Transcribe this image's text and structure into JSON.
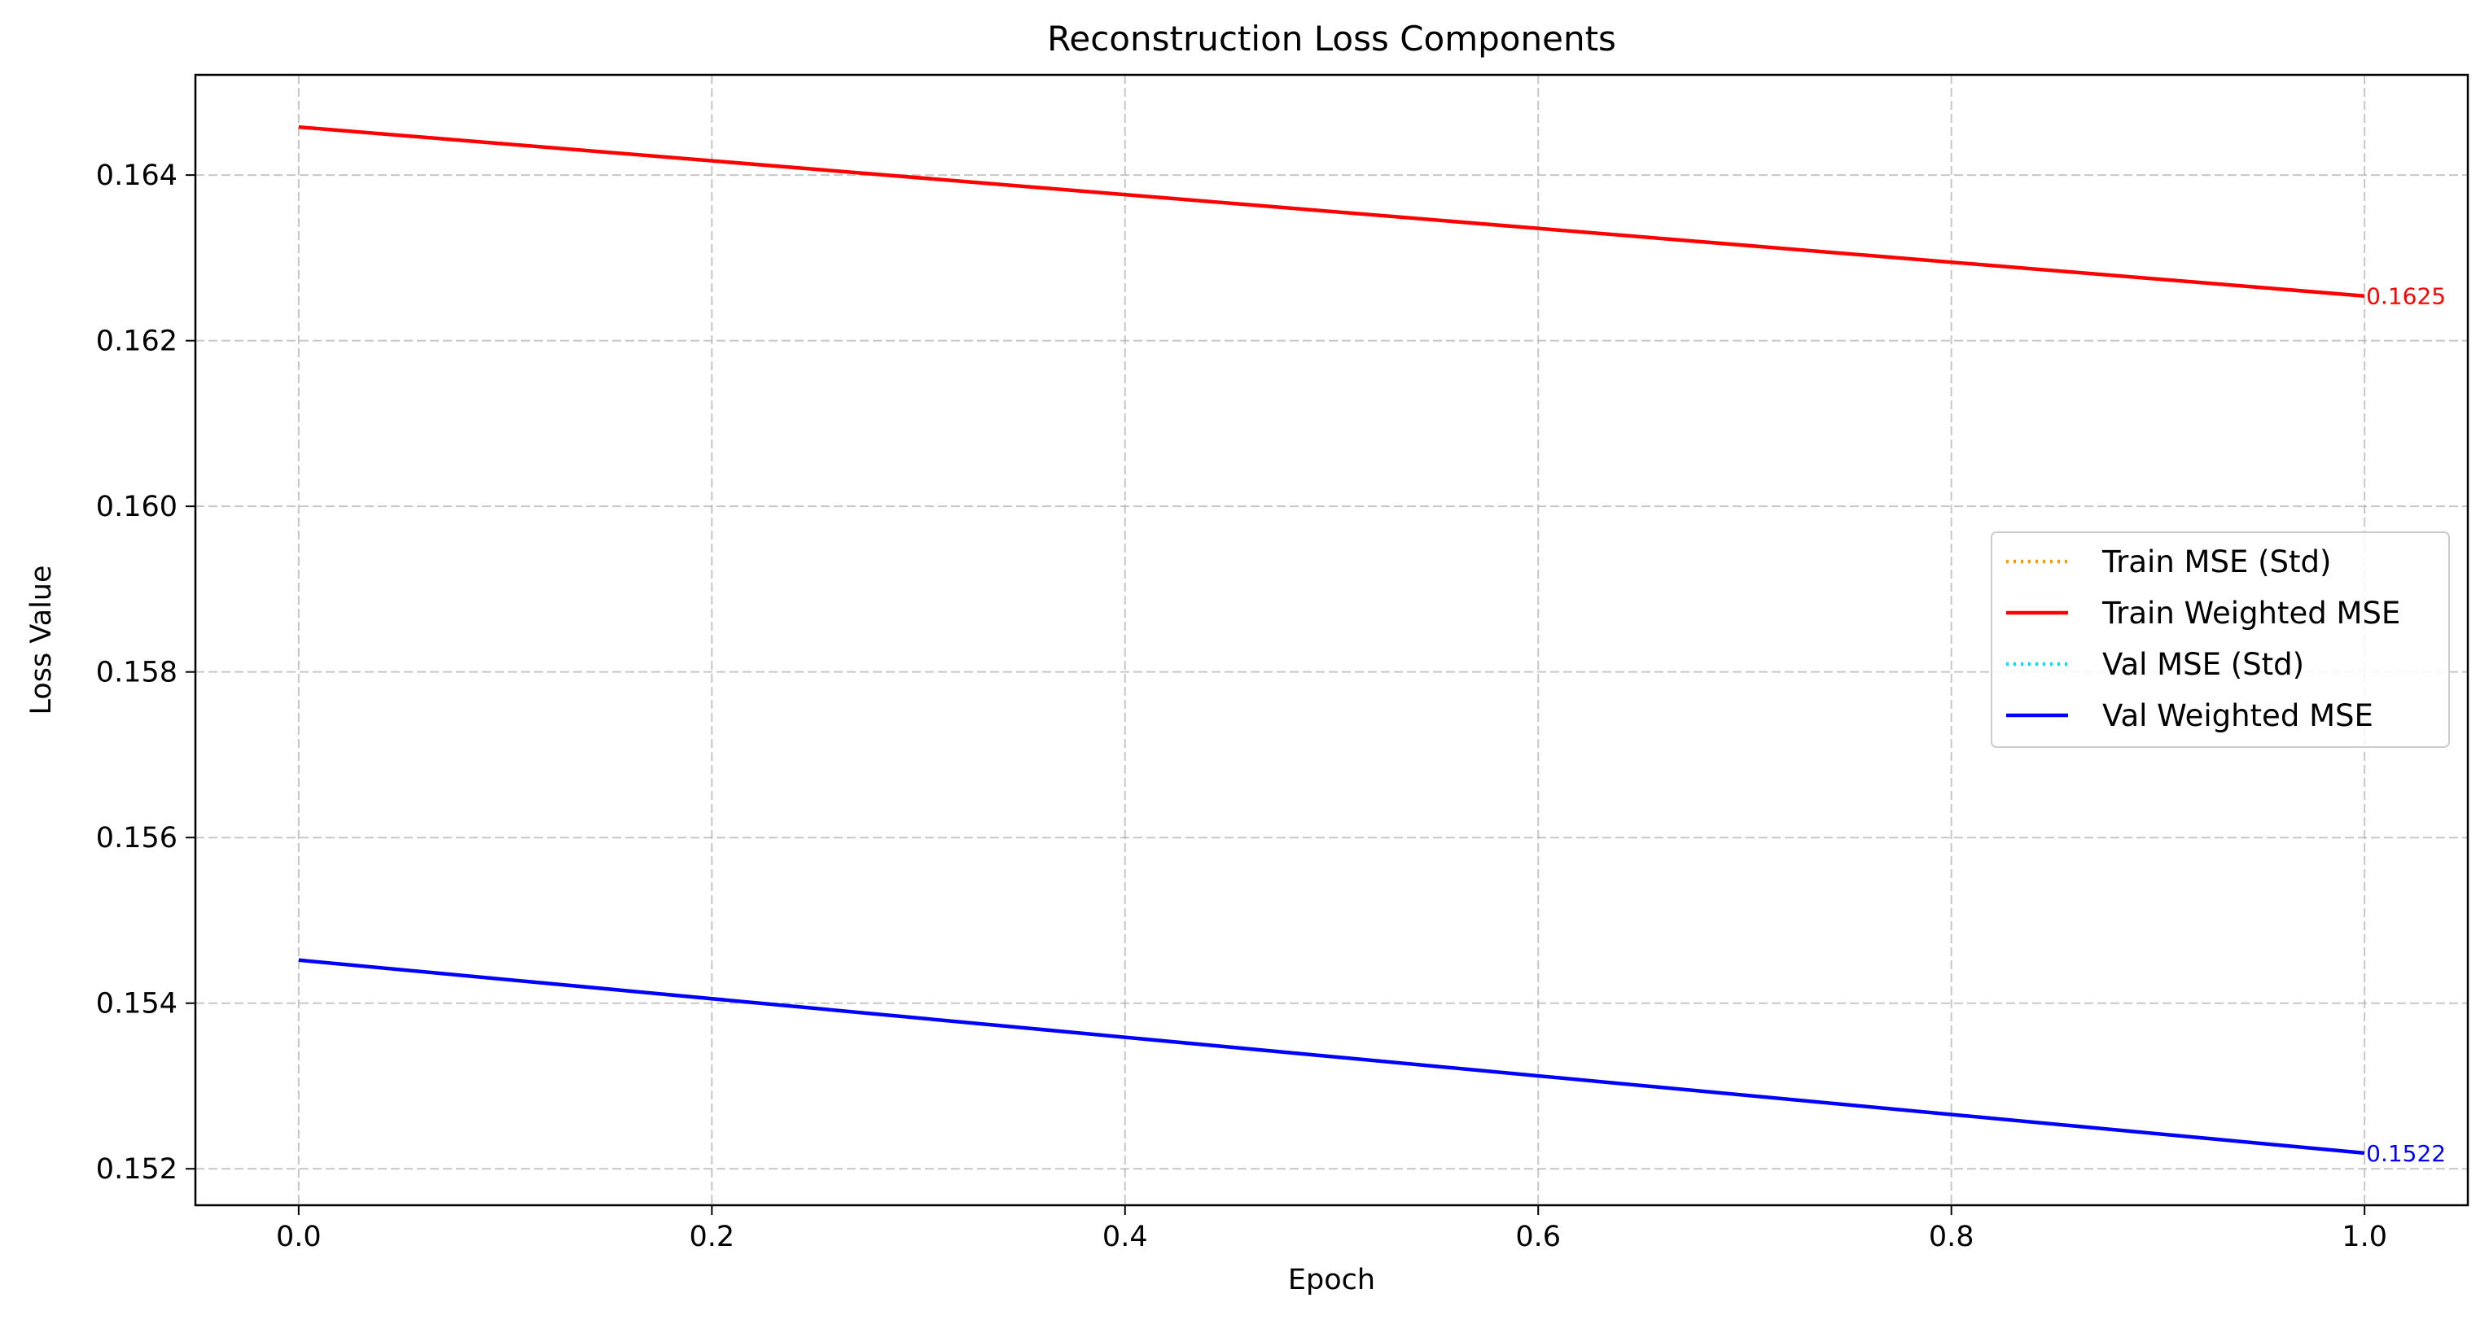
{
  "chart_data": {
    "type": "line",
    "title": "Reconstruction Loss Components",
    "xlabel": "Epoch",
    "ylabel": "Loss Value",
    "xlim": [
      -0.05,
      1.05
    ],
    "ylim": [
      0.15156,
      0.16521
    ],
    "xticks": [
      0.0,
      0.2,
      0.4,
      0.6,
      0.8,
      1.0
    ],
    "xtick_labels": [
      "0.0",
      "0.2",
      "0.4",
      "0.6",
      "0.8",
      "1.0"
    ],
    "yticks": [
      0.152,
      0.154,
      0.156,
      0.158,
      0.16,
      0.162,
      0.164
    ],
    "ytick_labels": [
      "0.152",
      "0.154",
      "0.156",
      "0.158",
      "0.160",
      "0.162",
      "0.164"
    ],
    "grid": true,
    "legend_position": "center-right",
    "series": [
      {
        "name": "Train MSE (Std)",
        "color": "#ff9900",
        "style": "dotted",
        "x": [],
        "y": []
      },
      {
        "name": "Train Weighted MSE",
        "color": "#ff0000",
        "style": "solid",
        "x": [
          0,
          1
        ],
        "y": [
          0.16458,
          0.16254
        ]
      },
      {
        "name": "Val MSE (Std)",
        "color": "#00e5ee",
        "style": "dotted",
        "x": [],
        "y": []
      },
      {
        "name": "Val Weighted MSE",
        "color": "#0000ff",
        "style": "solid",
        "x": [
          0,
          1
        ],
        "y": [
          0.15452,
          0.15219
        ]
      }
    ],
    "annotations": [
      {
        "text": "0.1625",
        "x": 1,
        "y": 0.16254,
        "color": "#ff0000"
      },
      {
        "text": "0.1522",
        "x": 1,
        "y": 0.15219,
        "color": "#0000ff"
      }
    ]
  }
}
